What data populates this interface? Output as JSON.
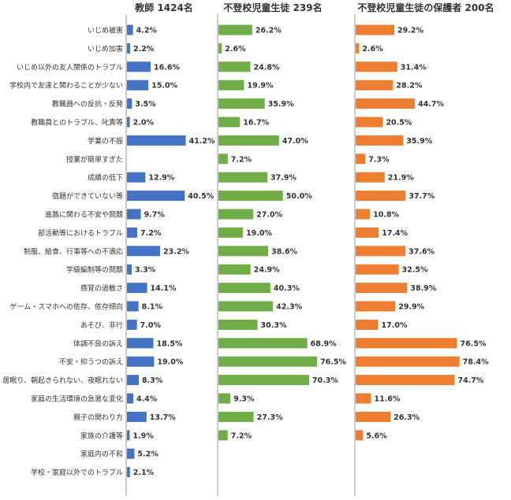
{
  "chart_data": {
    "type": "bar",
    "orientation": "horizontal",
    "categories": [
      "いじめ被害",
      "いじめ加害",
      "いじめ以外の友人関係のトラブル",
      "学校内で友達と関わることが少ない",
      "教職員への反抗・反発",
      "教職員とのトラブル、叱責等",
      "学業の不振",
      "授業が簡単すぎた",
      "成績の低下",
      "宿題ができていない等",
      "進路に関わる不安や問題",
      "部活動等におけるトラブル",
      "制服、給食、行事等への不適応",
      "学級編制等の問題",
      "感覚の過敏さ",
      "ゲーム・スマホへの依存、依存傾向",
      "あそび、非行",
      "体調不良の訴え",
      "不安・抑うつの訴え",
      "居眠り、朝起きられない、夜眠れない",
      "家庭の生活環境の急激な変化",
      "親子の関わり方",
      "家族の介護等",
      "家庭内の不和",
      "学校・家庭以外でのトラブル"
    ],
    "series": [
      {
        "name": "教師 1424名",
        "color": "#4472C4",
        "values": [
          4.2,
          2.2,
          16.6,
          15.0,
          3.5,
          2.0,
          41.2,
          null,
          12.9,
          40.5,
          9.7,
          7.2,
          23.2,
          3.3,
          14.1,
          8.1,
          7.0,
          18.5,
          19.0,
          8.3,
          4.4,
          13.7,
          1.9,
          5.2,
          2.1
        ],
        "labels": [
          "4.2%",
          "2.2%",
          "16.6%",
          "15.0%",
          "3.5%",
          "2.0%",
          "41.2%",
          "",
          "12.9%",
          "40.5%",
          "9.7%",
          "7.2%",
          "23.2%",
          "3.3%",
          "14.1%",
          "8.1%",
          "7.0%",
          "18.5%",
          "19.0%",
          "8.3%",
          "4.4%",
          "13.7%",
          "1.9%",
          "5.2%",
          "2.1%"
        ]
      },
      {
        "name": "不登校児童生徒 239名",
        "color": "#70AD47",
        "values": [
          26.2,
          2.6,
          24.8,
          19.9,
          35.9,
          16.7,
          47.0,
          7.2,
          37.9,
          50.0,
          27.0,
          19.0,
          38.6,
          24.9,
          40.3,
          42.3,
          30.3,
          68.9,
          76.5,
          70.3,
          9.3,
          27.3,
          7.2,
          null,
          null
        ],
        "labels": [
          "26.2%",
          "2.6%",
          "24.8%",
          "19.9%",
          "35.9%",
          "16.7%",
          "47.0%",
          "7.2%",
          "37.9%",
          "50.0%",
          "27.0%",
          "19.0%",
          "38.6%",
          "24.9%",
          "40.3%",
          "42.3%",
          "30.3%",
          "68.9%",
          "76.5%",
          "70.3%",
          "9.3%",
          "27.3%",
          "7.2%",
          "",
          ""
        ]
      },
      {
        "name": "不登校児童生徒の保護者 200名",
        "color": "#ED7D31",
        "values": [
          29.2,
          2.6,
          31.4,
          28.2,
          44.7,
          20.5,
          35.9,
          7.3,
          21.9,
          37.7,
          10.8,
          17.4,
          37.6,
          32.5,
          38.9,
          29.9,
          17.0,
          76.5,
          78.4,
          74.7,
          11.6,
          26.3,
          5.6,
          null,
          null
        ],
        "labels": [
          "29.2%",
          "2.6%",
          "31.4%",
          "28.2%",
          "44.7%",
          "20.5%",
          "35.9%",
          "7.3%",
          "21.9%",
          "37.7%",
          "10.8%",
          "17.4%",
          "37.6%",
          "32.5%",
          "38.9%",
          "29.9%",
          "17.0%",
          "76.5%",
          "78.4%",
          "74.7%",
          "11.6%",
          "26.3%",
          "5.6%",
          "",
          ""
        ]
      }
    ],
    "xlim": [
      0,
      100
    ],
    "grid": false,
    "legend": "none"
  }
}
